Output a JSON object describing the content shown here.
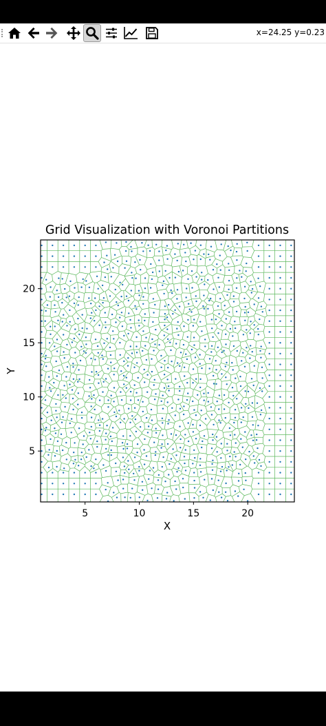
{
  "window": {
    "toolbar": {
      "items": [
        {
          "name": "home-icon",
          "tooltip": "Home"
        },
        {
          "name": "back-icon",
          "tooltip": "Back"
        },
        {
          "name": "forward-icon",
          "tooltip": "Forward"
        },
        {
          "name": "pan-icon",
          "tooltip": "Pan"
        },
        {
          "name": "zoom-icon",
          "tooltip": "Zoom",
          "active": true
        },
        {
          "name": "subplots-icon",
          "tooltip": "Configure subplots"
        },
        {
          "name": "edit-axes-icon",
          "tooltip": "Edit axis"
        },
        {
          "name": "save-icon",
          "tooltip": "Save"
        }
      ],
      "coordinates": "x=24.25 y=0.23"
    }
  },
  "chart_data": {
    "type": "scatter",
    "title": "Grid Visualization with Voronoi Partitions",
    "xlabel": "X",
    "ylabel": "Y",
    "xlim": [
      0.9,
      24.3
    ],
    "ylim": [
      0.3,
      24.5
    ],
    "xticks": [
      5,
      10,
      15,
      20
    ],
    "yticks": [
      5,
      10,
      15,
      20
    ],
    "grid": false,
    "series": [
      {
        "role": "points",
        "marker_color": "#1f77b4",
        "description_of_layout": "regular grid points at integer-ish spacing near the border, jittered/relaxed points in the interior",
        "border_grid_step": 1,
        "border_rows_top_y": [
          24,
          23,
          22
        ],
        "border_cols_left_x": [
          1
        ],
        "border_cols_right_x": [
          22,
          23,
          24
        ],
        "border_rows_bottom_y": [
          1,
          2,
          3
        ]
      },
      {
        "role": "voronoi-edges",
        "line_color": "#5cb85c"
      }
    ]
  }
}
